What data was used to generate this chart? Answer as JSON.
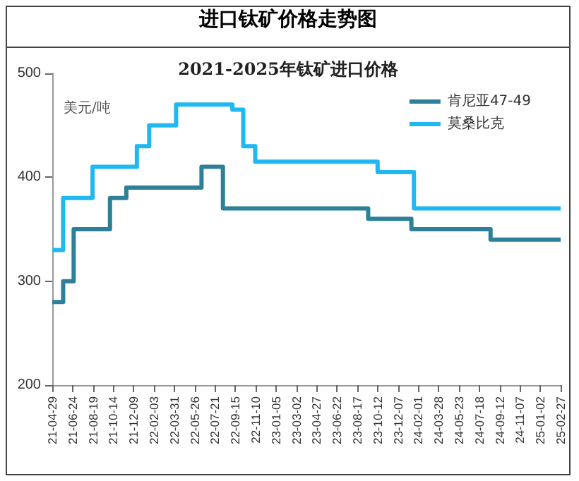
{
  "chart_data": {
    "type": "step",
    "title": "进口钛矿价格走势图",
    "subtitle": "2021-2025年钛矿进口价格",
    "ylabel": "美元/吨",
    "xlim": [
      "2021-04-29",
      "2025-02-27"
    ],
    "xticks": [
      {
        "value": "2021-04-29",
        "label": "21-04-29"
      },
      {
        "value": "2021-06-24",
        "label": "21-06-24"
      },
      {
        "value": "2021-08-19",
        "label": "21-08-19"
      },
      {
        "value": "2021-10-14",
        "label": "21-10-14"
      },
      {
        "value": "2021-12-09",
        "label": "21-12-09"
      },
      {
        "value": "2022-02-03",
        "label": "22-02-03"
      },
      {
        "value": "2022-03-31",
        "label": "22-03-31"
      },
      {
        "value": "2022-05-26",
        "label": "22-05-26"
      },
      {
        "value": "2022-07-21",
        "label": "22-07-21"
      },
      {
        "value": "2022-09-15",
        "label": "22-09-15"
      },
      {
        "value": "2022-11-10",
        "label": "22-11-10"
      },
      {
        "value": "2023-01-05",
        "label": "23-01-05"
      },
      {
        "value": "2023-03-02",
        "label": "23-03-02"
      },
      {
        "value": "2023-04-27",
        "label": "23-04-27"
      },
      {
        "value": "2023-06-22",
        "label": "23-06-22"
      },
      {
        "value": "2023-08-17",
        "label": "23-08-17"
      },
      {
        "value": "2023-10-12",
        "label": "23-10-12"
      },
      {
        "value": "2023-12-07",
        "label": "23-12-07"
      },
      {
        "value": "2024-02-01",
        "label": "24-02-01"
      },
      {
        "value": "2024-03-28",
        "label": "24-03-28"
      },
      {
        "value": "2024-05-23",
        "label": "24-05-23"
      },
      {
        "value": "2024-07-18",
        "label": "24-07-18"
      },
      {
        "value": "2024-09-12",
        "label": "24-09-12"
      },
      {
        "value": "2024-11-07",
        "label": "24-11-07"
      },
      {
        "value": "2025-01-02",
        "label": "25-01-02"
      },
      {
        "value": "2025-02-27",
        "label": "25-02-27"
      }
    ],
    "ylim": [
      200,
      500
    ],
    "yticks": [
      200,
      300,
      400,
      500
    ],
    "grid": false,
    "legend": "top right",
    "line_style": "solid",
    "marker": "none",
    "series": [
      {
        "name": "肯尼亚47-49",
        "color": "#2e8099",
        "x": [
          "2021-04-29",
          "2021-05-29",
          "2021-06-27",
          "2021-10-05",
          "2021-11-19",
          "2022-06-14",
          "2022-08-12",
          "2023-09-16",
          "2024-01-13",
          "2024-08-18",
          "2025-02-27"
        ],
        "values": [
          280,
          300,
          350,
          380,
          390,
          410,
          370,
          360,
          350,
          340,
          340
        ]
      },
      {
        "name": "莫桑比克",
        "color": "#1fb8f0",
        "x": [
          "2021-04-29",
          "2021-05-29",
          "2021-08-18",
          "2021-12-18",
          "2022-01-21",
          "2022-04-05",
          "2022-09-07",
          "2022-10-07",
          "2022-11-09",
          "2023-10-12",
          "2024-01-20",
          "2025-02-27"
        ],
        "values": [
          330,
          380,
          410,
          430,
          450,
          470,
          465,
          430,
          415,
          405,
          370,
          370
        ]
      }
    ]
  }
}
